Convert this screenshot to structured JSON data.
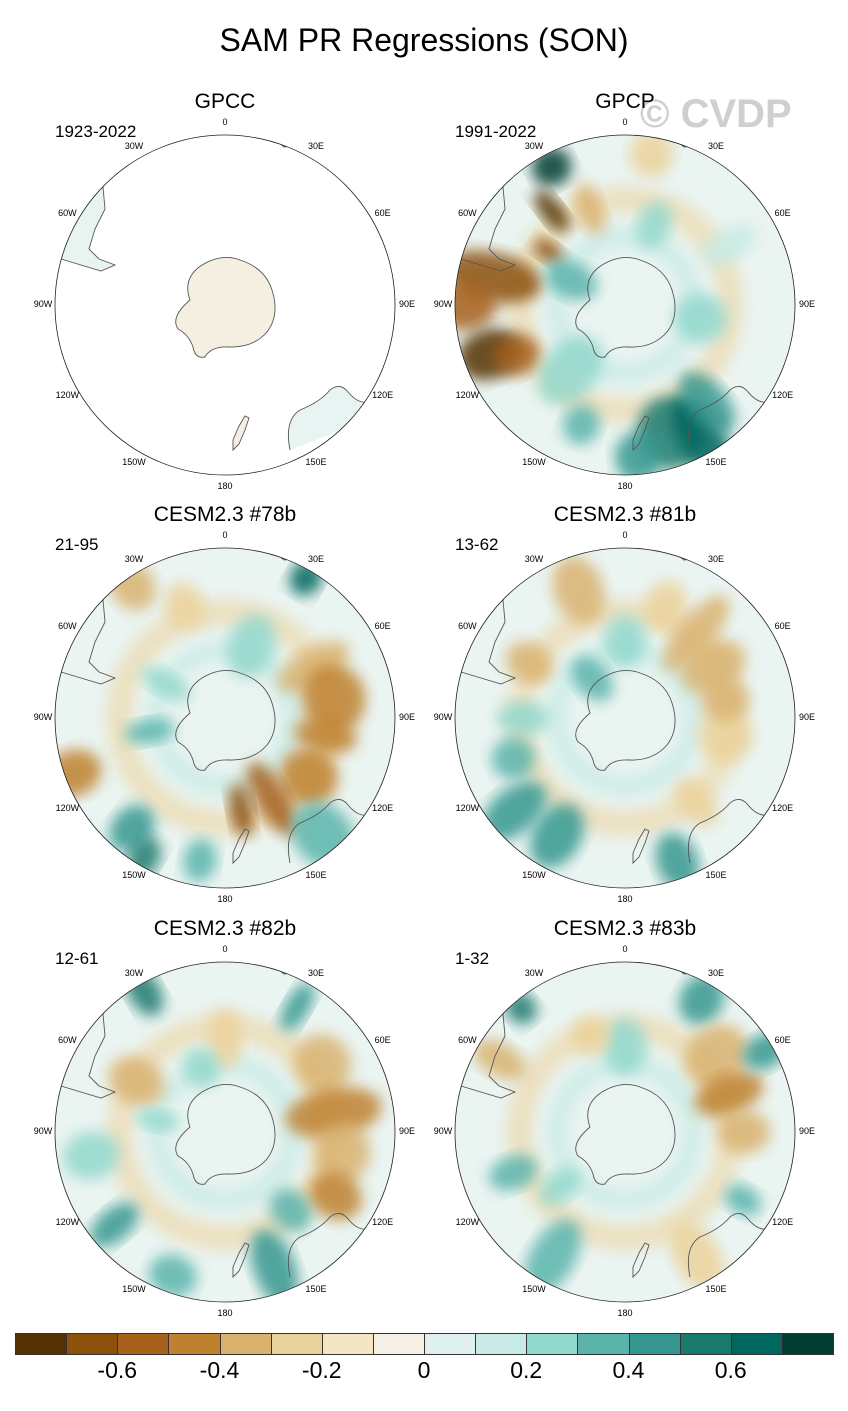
{
  "title": "SAM PR Regressions (SON)",
  "watermark": "© CVDP",
  "longitude_labels": [
    "0",
    "30E",
    "60E",
    "90E",
    "120E",
    "150E",
    "180",
    "150W",
    "120W",
    "90W",
    "60W",
    "30W"
  ],
  "panels": [
    {
      "name": "GPCC",
      "period": "1923-2022",
      "coverage": "land-only"
    },
    {
      "name": "GPCP",
      "period": "1991-2022",
      "coverage": "global"
    },
    {
      "name": "CESM2.3 #78b",
      "period": "21-95",
      "coverage": "global"
    },
    {
      "name": "CESM2.3 #81b",
      "period": "13-62",
      "coverage": "global"
    },
    {
      "name": "CESM2.3 #82b",
      "period": "12-61",
      "coverage": "global"
    },
    {
      "name": "CESM2.3 #83b",
      "period": "1-32",
      "coverage": "global"
    }
  ],
  "colorbar": {
    "colors": [
      "#543005",
      "#8c510a",
      "#a6611a",
      "#bf812d",
      "#d9b26f",
      "#ebd29a",
      "#f5e6c3",
      "#f5f0e4",
      "#e0f0ee",
      "#c7eae5",
      "#92d8cc",
      "#5ab4ac",
      "#35978f",
      "#1a7a6e",
      "#01665e",
      "#003c30"
    ],
    "tick_labels": [
      "-0.6",
      "-0.4",
      "-0.2",
      "0",
      "0.2",
      "0.4",
      "0.6"
    ]
  }
}
